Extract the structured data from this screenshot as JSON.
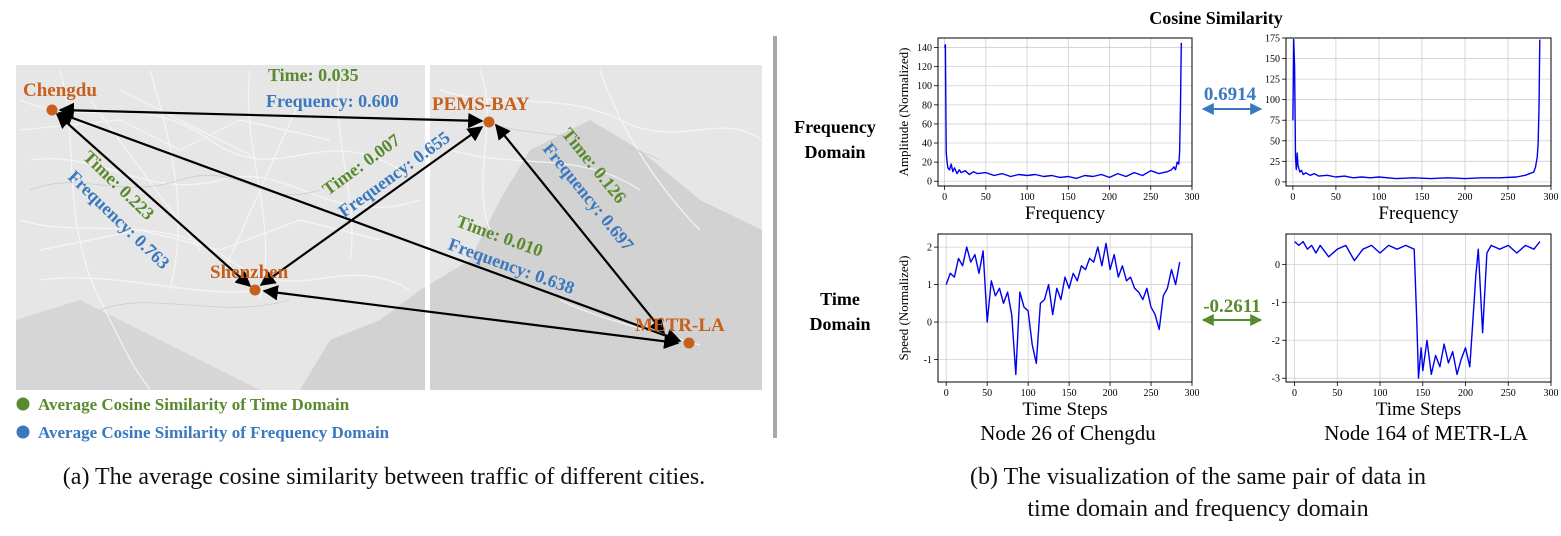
{
  "colors": {
    "time": "#5a8a2e",
    "frequency": "#3a78bf",
    "city": "#c8601c",
    "series": "#0000ee",
    "map_bg": "#e3e3e3",
    "sea": "#cfcfcf"
  },
  "map": {
    "cities": [
      {
        "name": "Chengdu"
      },
      {
        "name": "PEMS-BAY"
      },
      {
        "name": "Shenzhen"
      },
      {
        "name": "METR-LA"
      }
    ],
    "edges": [
      {
        "time": "Time: 0.035",
        "freq": "Frequency: 0.600"
      },
      {
        "time": "Time: 0.223",
        "freq": "Frequency: 0.763"
      },
      {
        "time": "Time: 0.007",
        "freq": "Frequency: 0.655"
      },
      {
        "time": "Time: 0.126",
        "freq": "Frequency: 0.697"
      },
      {
        "time": "Time: 0.010",
        "freq": "Frequency: 0.638"
      }
    ],
    "legend": {
      "time": "Average Cosine Similarity of Time Domain",
      "freq": "Average Cosine Similarity of Frequency Domain"
    },
    "caption": "(a) The average cosine similarity between traffic of different cities."
  },
  "panel_b": {
    "title": "Cosine Similarity",
    "row_freq": [
      "Frequency",
      "Domain"
    ],
    "row_time": [
      "Time",
      "Domain"
    ],
    "freq_similarity": "0.6914",
    "time_similarity": "-0.2611",
    "node_left": "Node 26 of Chengdu",
    "node_right": "Node 164 of METR-LA",
    "caption_line1": "(b) The visualization of the same pair of data in",
    "caption_line2": "time domain and frequency domain"
  },
  "chart_data": [
    {
      "type": "line",
      "id": "freq_left",
      "title": "",
      "xlabel": "Frequency",
      "ylabel": "Amplitude (Normalized)",
      "xlim": [
        -8,
        300
      ],
      "ylim": [
        -5,
        150
      ],
      "xticks": [
        0,
        50,
        100,
        150,
        200,
        250,
        300
      ],
      "yticks": [
        0,
        20,
        40,
        60,
        80,
        100,
        120,
        140
      ],
      "x": [
        0,
        1,
        2,
        3,
        4,
        6,
        8,
        10,
        12,
        15,
        18,
        20,
        25,
        30,
        35,
        40,
        50,
        60,
        70,
        80,
        90,
        100,
        110,
        120,
        130,
        140,
        150,
        160,
        170,
        180,
        190,
        200,
        210,
        220,
        230,
        240,
        250,
        260,
        270,
        275,
        278,
        280,
        282,
        284,
        285,
        286,
        287
      ],
      "y": [
        140,
        143,
        30,
        20,
        14,
        12,
        18,
        10,
        14,
        8,
        12,
        9,
        11,
        7,
        10,
        8,
        9,
        6,
        8,
        5,
        7,
        6,
        7,
        5,
        6,
        4,
        5,
        3,
        6,
        5,
        7,
        4,
        8,
        5,
        9,
        6,
        11,
        8,
        10,
        12,
        15,
        12,
        20,
        18,
        30,
        80,
        145
      ]
    },
    {
      "type": "line",
      "id": "freq_right",
      "title": "",
      "xlabel": "Frequency",
      "ylabel": "",
      "xlim": [
        -8,
        300
      ],
      "ylim": [
        -5,
        175
      ],
      "xticks": [
        0,
        50,
        100,
        150,
        200,
        250,
        300
      ],
      "yticks": [
        0,
        25,
        50,
        75,
        100,
        125,
        150,
        175
      ],
      "x": [
        0,
        1,
        2,
        3,
        4,
        5,
        6,
        8,
        10,
        12,
        15,
        20,
        25,
        30,
        40,
        50,
        60,
        70,
        80,
        90,
        100,
        120,
        140,
        160,
        180,
        200,
        220,
        240,
        260,
        270,
        275,
        280,
        282,
        284,
        285,
        286,
        287
      ],
      "y": [
        75,
        173,
        140,
        30,
        15,
        35,
        20,
        12,
        14,
        9,
        11,
        8,
        10,
        7,
        8,
        6,
        7,
        5,
        6,
        5,
        6,
        4,
        5,
        4,
        5,
        4,
        5,
        5,
        6,
        8,
        10,
        12,
        18,
        30,
        45,
        90,
        173
      ]
    },
    {
      "type": "line",
      "id": "time_left",
      "title": "",
      "xlabel": "Time Steps",
      "ylabel": "Speed (Normalized)",
      "xlim": [
        -10,
        300
      ],
      "ylim": [
        -1.6,
        2.35
      ],
      "xticks": [
        0,
        50,
        100,
        150,
        200,
        250,
        300
      ],
      "yticks": [
        -1,
        0,
        1,
        2
      ],
      "x": [
        0,
        5,
        10,
        15,
        20,
        25,
        30,
        35,
        40,
        45,
        50,
        55,
        60,
        65,
        70,
        75,
        80,
        85,
        90,
        95,
        100,
        105,
        110,
        115,
        120,
        125,
        130,
        135,
        140,
        145,
        150,
        155,
        160,
        165,
        170,
        175,
        180,
        185,
        190,
        195,
        200,
        205,
        210,
        215,
        220,
        225,
        230,
        235,
        240,
        245,
        250,
        255,
        260,
        265,
        270,
        275,
        280,
        285
      ],
      "y": [
        1.0,
        1.3,
        1.2,
        1.7,
        1.5,
        2.0,
        1.6,
        1.8,
        1.3,
        1.9,
        0.0,
        1.1,
        0.7,
        0.9,
        0.5,
        0.8,
        0.2,
        -1.4,
        0.8,
        0.4,
        0.3,
        -0.6,
        -1.1,
        0.5,
        0.6,
        1.0,
        0.2,
        0.9,
        0.6,
        1.2,
        0.9,
        1.3,
        1.1,
        1.5,
        1.4,
        1.7,
        1.6,
        2.0,
        1.5,
        2.1,
        1.4,
        1.8,
        1.2,
        1.5,
        1.1,
        1.2,
        0.9,
        0.8,
        0.6,
        0.9,
        0.4,
        0.2,
        -0.2,
        0.7,
        0.9,
        1.4,
        1.0,
        1.6
      ]
    },
    {
      "type": "line",
      "id": "time_right",
      "title": "",
      "xlabel": "Time Steps",
      "ylabel": "",
      "xlim": [
        -10,
        300
      ],
      "ylim": [
        -3.1,
        0.8
      ],
      "xticks": [
        0,
        50,
        100,
        150,
        200,
        250,
        300
      ],
      "yticks": [
        -3,
        -2,
        -1,
        0
      ],
      "x": [
        0,
        5,
        10,
        15,
        20,
        25,
        30,
        40,
        50,
        60,
        70,
        80,
        90,
        100,
        110,
        120,
        130,
        140,
        143,
        145,
        148,
        150,
        155,
        160,
        165,
        170,
        175,
        180,
        185,
        190,
        195,
        200,
        205,
        210,
        212,
        215,
        220,
        225,
        230,
        240,
        250,
        260,
        270,
        280,
        287
      ],
      "y": [
        0.6,
        0.5,
        0.6,
        0.4,
        0.5,
        0.3,
        0.5,
        0.2,
        0.4,
        0.5,
        0.1,
        0.4,
        0.5,
        0.3,
        0.5,
        0.4,
        0.5,
        0.4,
        -1.5,
        -3.0,
        -2.2,
        -2.8,
        -2.0,
        -2.9,
        -2.4,
        -2.7,
        -2.1,
        -2.6,
        -2.3,
        -2.9,
        -2.5,
        -2.2,
        -2.7,
        -1.0,
        -0.3,
        0.4,
        -1.8,
        0.3,
        0.5,
        0.4,
        0.5,
        0.3,
        0.5,
        0.4,
        0.6
      ]
    }
  ]
}
